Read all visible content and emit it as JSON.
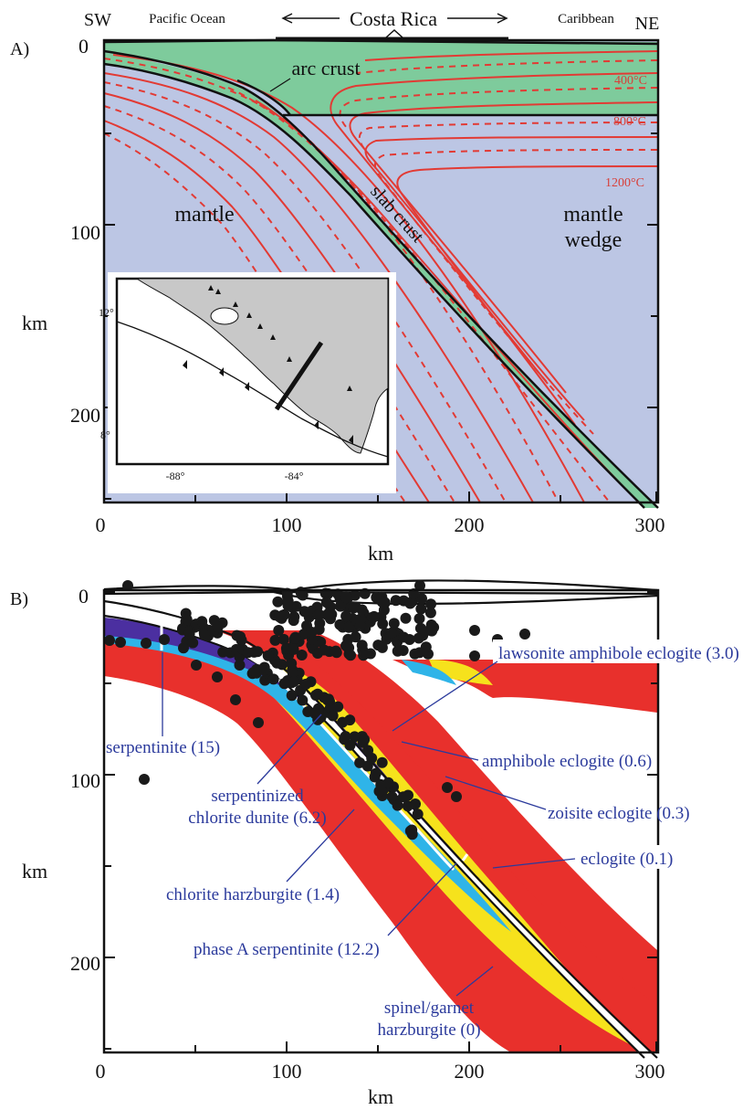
{
  "panel_a": {
    "letter": "A)",
    "sw": "SW",
    "ne": "NE",
    "pacific": "Pacific Ocean",
    "costa_rica": "Costa Rica",
    "caribbean": "Caribbean",
    "arc_crust": "arc crust",
    "slab_crust": "slab crust",
    "mantle": "mantle",
    "mantle_wedge_1": "mantle",
    "mantle_wedge_2": "wedge",
    "iso_400": "400°C",
    "iso_800": "800°C",
    "iso_1200": "1200°C",
    "y_axis_title": "km",
    "x_axis_title": "km",
    "y_ticks": [
      "0",
      "100",
      "200"
    ],
    "x_ticks": [
      "0",
      "100",
      "200",
      "300"
    ],
    "inset": {
      "lat_labels": [
        "12°",
        "8°"
      ],
      "lon_labels": [
        "-88°",
        "-84°"
      ]
    },
    "colors": {
      "mantle": "#bcc6e4",
      "crust": "#7ecb9c",
      "isotherm": "#e23a34"
    }
  },
  "panel_b": {
    "letter": "B)",
    "y_axis_title": "km",
    "x_axis_title": "km",
    "y_ticks": [
      "0",
      "100",
      "200"
    ],
    "x_ticks": [
      "0",
      "100",
      "200",
      "300"
    ],
    "labels": {
      "lawsonite": "lawsonite amphibole eclogite (3.0)",
      "serpentinite": "serpentinite (15)",
      "amphibole": "amphibole eclogite (0.6)",
      "serp_chlorite_1": "serpentinized",
      "serp_chlorite_2": "chlorite dunite (6.2)",
      "zoisite": "zoisite eclogite (0.3)",
      "eclogite": "eclogite (0.1)",
      "chlorite_harz": "chlorite harzburgite (1.4)",
      "phaseA": "phase A serpentinite (12.2)",
      "spinel_1": "spinel/garnet",
      "spinel_2": "harzburgite (0)"
    },
    "colors": {
      "red": "#e8302c",
      "yellow": "#f6e21c",
      "cyan": "#2fb4e8",
      "purple": "#4b2fa0",
      "blue_text": "#2b3a9c"
    }
  }
}
